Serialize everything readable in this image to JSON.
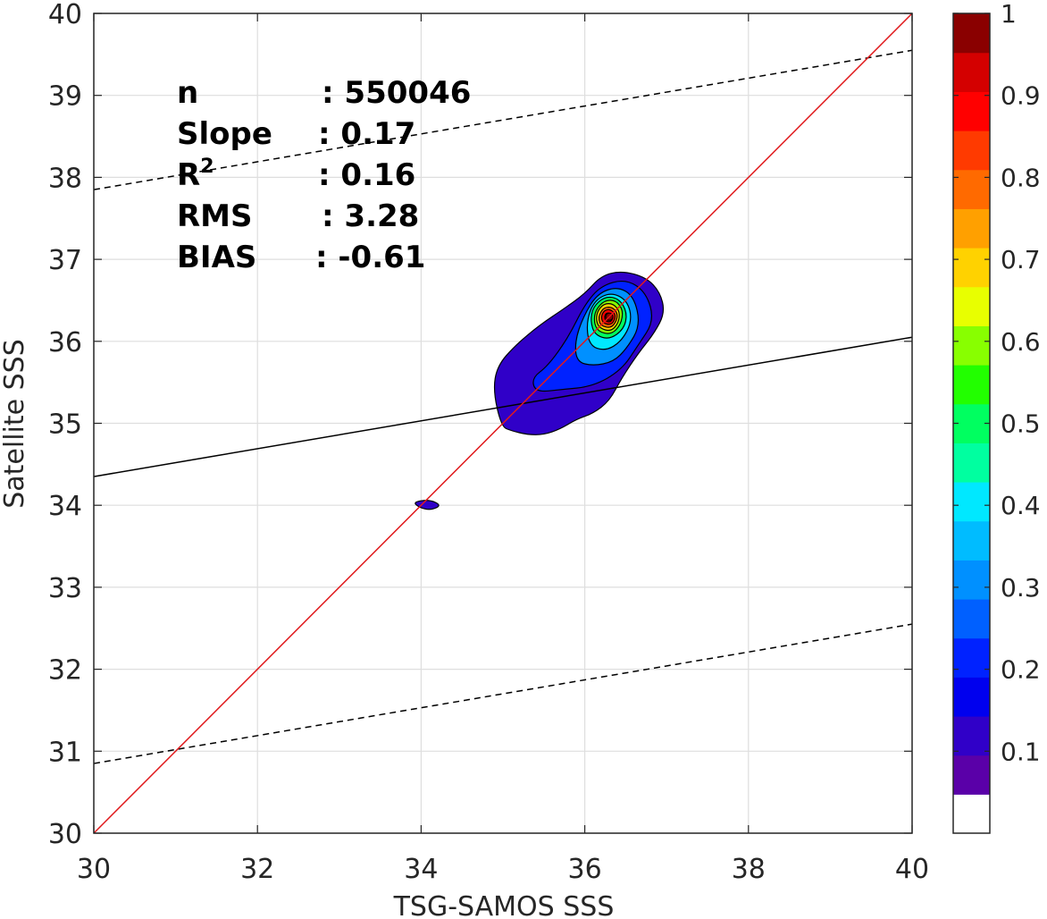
{
  "chart_data": {
    "type": "contour-density-scatter",
    "xlabel": "TSG-SAMOS SSS",
    "ylabel": "Satellite SSS",
    "xlim": [
      30,
      40
    ],
    "ylim": [
      30,
      40
    ],
    "xticks": [
      "30",
      "32",
      "34",
      "36",
      "38",
      "40"
    ],
    "yticks": [
      "30",
      "31",
      "32",
      "33",
      "34",
      "35",
      "36",
      "37",
      "38",
      "39",
      "40"
    ],
    "grid": true,
    "stats": [
      {
        "name": "n",
        "sep": ": 550046"
      },
      {
        "name": "Slope",
        "sep": ": 0.17"
      },
      {
        "name": "R",
        "sup": "2",
        "sep": ": 0.16"
      },
      {
        "name": "RMS",
        "sep": ": 3.28"
      },
      {
        "name": "BIAS",
        "sep": ": -0.61"
      }
    ],
    "lines": {
      "one_to_one": {
        "from": [
          30,
          30
        ],
        "to": [
          40,
          40
        ],
        "color": "#e0191c"
      },
      "regression": {
        "from": [
          30,
          34.35
        ],
        "to": [
          40,
          36.05
        ],
        "color": "#000000"
      },
      "upper_dashed": {
        "from": [
          30,
          37.85
        ],
        "to": [
          40,
          39.55
        ],
        "color": "#000000"
      },
      "lower_dashed": {
        "from": [
          30,
          30.85
        ],
        "to": [
          40,
          32.55
        ],
        "color": "#000000"
      }
    },
    "density_peak": {
      "x": 36.3,
      "y": 36.3
    },
    "colorbar": {
      "range": [
        0,
        1
      ],
      "ticks": [
        "0.1",
        "0.2",
        "0.3",
        "0.4",
        "0.5",
        "0.6",
        "0.7",
        "0.8",
        "0.9",
        "1"
      ],
      "colors": [
        "#ffffff",
        "#5a00a8",
        "#3000c8",
        "#0000ee",
        "#0022ff",
        "#0060ff",
        "#0090ff",
        "#00bcff",
        "#00e8ff",
        "#00ffa0",
        "#00ff60",
        "#22ff00",
        "#88ff00",
        "#e8ff00",
        "#ffd200",
        "#ffa000",
        "#ff6a00",
        "#ff3a00",
        "#ff0000",
        "#d40000",
        "#8a0000"
      ]
    },
    "contours": [
      {
        "level": 0.05,
        "points": [
          [
            34.98,
            34.96
          ],
          [
            35.1,
            34.91
          ],
          [
            35.3,
            34.86
          ],
          [
            35.5,
            34.86
          ],
          [
            35.7,
            34.93
          ],
          [
            35.9,
            35.05
          ],
          [
            36.1,
            35.12
          ],
          [
            36.3,
            35.27
          ],
          [
            36.45,
            35.55
          ],
          [
            36.65,
            35.85
          ],
          [
            36.85,
            36.1
          ],
          [
            36.98,
            36.35
          ],
          [
            36.92,
            36.6
          ],
          [
            36.75,
            36.78
          ],
          [
            36.45,
            36.86
          ],
          [
            36.2,
            36.8
          ],
          [
            36.0,
            36.58
          ],
          [
            35.75,
            36.4
          ],
          [
            35.45,
            36.2
          ],
          [
            35.15,
            35.95
          ],
          [
            34.93,
            35.7
          ],
          [
            34.88,
            35.4
          ]
        ]
      },
      {
        "level": 0.05,
        "points": [
          [
            33.9,
            34.04
          ],
          [
            34.1,
            34.07
          ],
          [
            34.25,
            34.0
          ],
          [
            34.12,
            33.94
          ],
          [
            33.98,
            33.97
          ]
        ]
      },
      {
        "level": 0.15,
        "points": [
          [
            35.4,
            35.38
          ],
          [
            35.7,
            35.41
          ],
          [
            36.1,
            35.45
          ],
          [
            36.45,
            35.65
          ],
          [
            36.65,
            35.95
          ],
          [
            36.85,
            36.25
          ],
          [
            36.75,
            36.6
          ],
          [
            36.5,
            36.76
          ],
          [
            36.2,
            36.68
          ],
          [
            36.0,
            36.45
          ],
          [
            35.8,
            36.05
          ],
          [
            35.55,
            35.7
          ],
          [
            35.35,
            35.55
          ]
        ]
      },
      {
        "level": 0.25,
        "points": [
          [
            35.9,
            35.75
          ],
          [
            36.1,
            35.7
          ],
          [
            36.35,
            35.75
          ],
          [
            36.52,
            35.92
          ],
          [
            36.68,
            36.2
          ],
          [
            36.6,
            36.55
          ],
          [
            36.4,
            36.67
          ],
          [
            36.15,
            36.58
          ],
          [
            35.98,
            36.3
          ],
          [
            35.88,
            36.0
          ]
        ]
      },
      {
        "level": 0.35,
        "points": [
          [
            36.05,
            35.95
          ],
          [
            36.25,
            35.88
          ],
          [
            36.45,
            36.0
          ],
          [
            36.58,
            36.25
          ],
          [
            36.52,
            36.5
          ],
          [
            36.32,
            36.6
          ],
          [
            36.12,
            36.5
          ],
          [
            36.02,
            36.25
          ]
        ]
      },
      {
        "level": 0.45,
        "points": [
          [
            36.12,
            36.08
          ],
          [
            36.3,
            36.02
          ],
          [
            36.48,
            36.15
          ],
          [
            36.52,
            36.35
          ],
          [
            36.42,
            36.52
          ],
          [
            36.25,
            36.55
          ],
          [
            36.1,
            36.42
          ],
          [
            36.07,
            36.25
          ]
        ]
      },
      {
        "level": 0.55,
        "points": [
          [
            36.16,
            36.12
          ],
          [
            36.32,
            36.08
          ],
          [
            36.44,
            36.2
          ],
          [
            36.47,
            36.38
          ],
          [
            36.38,
            36.5
          ],
          [
            36.24,
            36.5
          ],
          [
            36.13,
            36.38
          ],
          [
            36.11,
            36.24
          ]
        ]
      },
      {
        "level": 0.65,
        "points": [
          [
            36.18,
            36.16
          ],
          [
            36.32,
            36.12
          ],
          [
            36.41,
            36.22
          ],
          [
            36.43,
            36.36
          ],
          [
            36.35,
            36.46
          ],
          [
            36.23,
            36.46
          ],
          [
            36.15,
            36.36
          ],
          [
            36.14,
            36.25
          ]
        ]
      },
      {
        "level": 0.75,
        "points": [
          [
            36.2,
            36.19
          ],
          [
            36.32,
            36.16
          ],
          [
            36.39,
            36.25
          ],
          [
            36.4,
            36.35
          ],
          [
            36.33,
            36.42
          ],
          [
            36.23,
            36.41
          ],
          [
            36.18,
            36.33
          ],
          [
            36.17,
            36.26
          ]
        ]
      },
      {
        "level": 0.85,
        "points": [
          [
            36.22,
            36.22
          ],
          [
            36.32,
            36.2
          ],
          [
            36.37,
            36.27
          ],
          [
            36.37,
            36.34
          ],
          [
            36.31,
            36.39
          ],
          [
            36.24,
            36.38
          ],
          [
            36.2,
            36.31
          ]
        ]
      },
      {
        "level": 0.95,
        "points": [
          [
            36.25,
            36.25
          ],
          [
            36.31,
            36.23
          ],
          [
            36.35,
            36.29
          ],
          [
            36.33,
            36.34
          ],
          [
            36.27,
            36.35
          ],
          [
            36.24,
            36.31
          ]
        ]
      }
    ]
  }
}
